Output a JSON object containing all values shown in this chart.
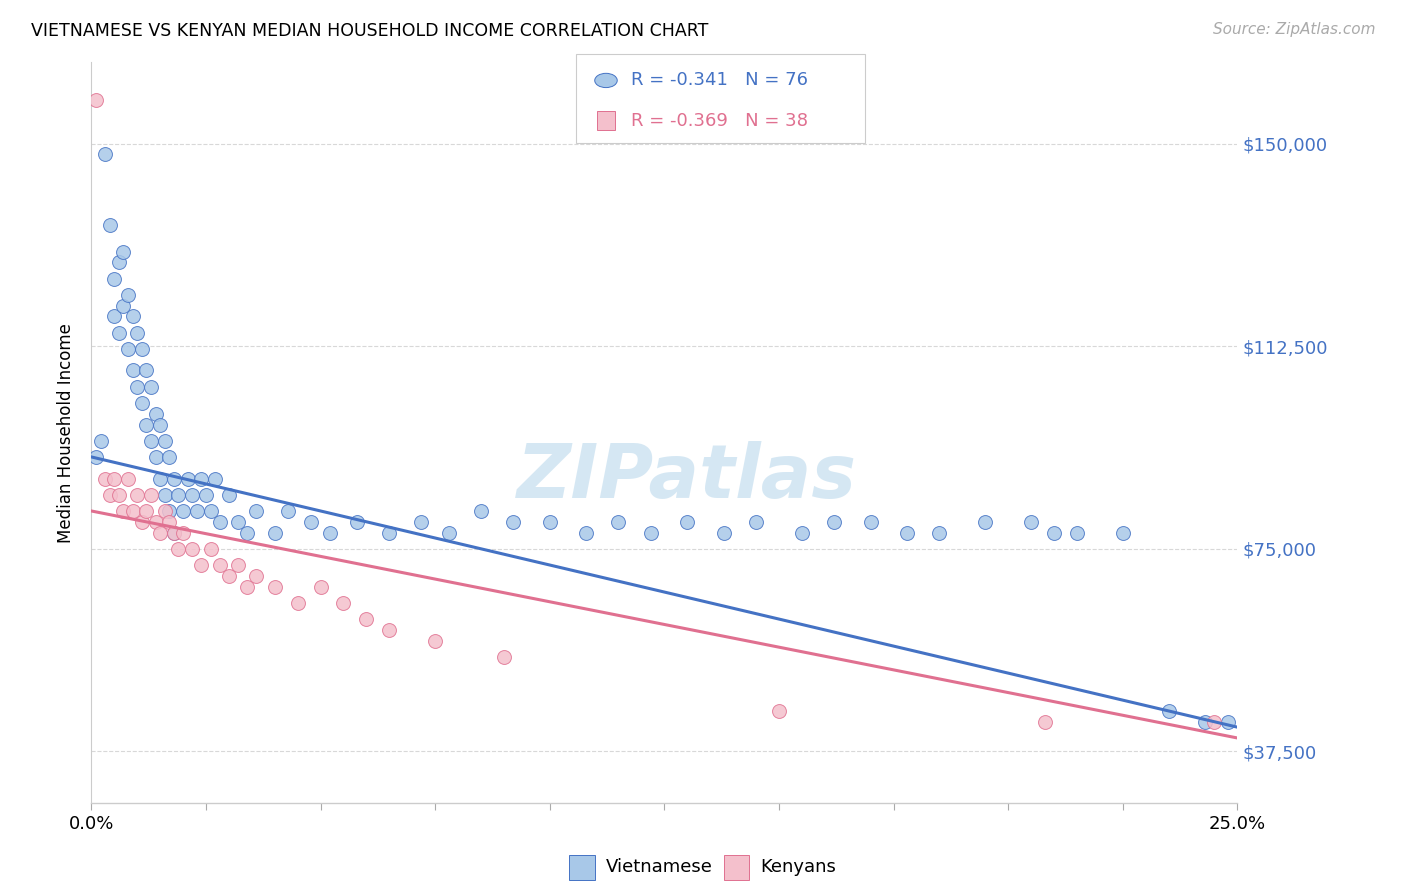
{
  "title": "VIETNAMESE VS KENYAN MEDIAN HOUSEHOLD INCOME CORRELATION CHART",
  "source": "Source: ZipAtlas.com",
  "ylabel": "Median Household Income",
  "yticks": [
    37500,
    75000,
    112500,
    150000
  ],
  "ytick_labels": [
    "$37,500",
    "$75,000",
    "$112,500",
    "$150,000"
  ],
  "xlim": [
    0.0,
    0.25
  ],
  "ylim": [
    28000,
    165000
  ],
  "watermark": "ZIPatlas",
  "legend_vietnamese": "Vietnamese",
  "legend_kenyans": "Kenyans",
  "r_vietnamese": "-0.341",
  "n_vietnamese": "76",
  "r_kenyans": "-0.369",
  "n_kenyans": "38",
  "blue_color": "#a8c8e8",
  "pink_color": "#f4c0cc",
  "line_blue": "#4472c4",
  "line_pink": "#e07090",
  "text_blue": "#4472c4",
  "text_pink": "#e07090",
  "bg_color": "#ffffff",
  "grid_color": "#d8d8d8",
  "vietnamese_x": [
    0.001,
    0.002,
    0.003,
    0.004,
    0.005,
    0.005,
    0.006,
    0.006,
    0.007,
    0.007,
    0.008,
    0.008,
    0.009,
    0.009,
    0.01,
    0.01,
    0.011,
    0.011,
    0.012,
    0.012,
    0.013,
    0.013,
    0.014,
    0.014,
    0.015,
    0.015,
    0.016,
    0.016,
    0.017,
    0.017,
    0.018,
    0.018,
    0.019,
    0.02,
    0.021,
    0.022,
    0.023,
    0.024,
    0.025,
    0.026,
    0.027,
    0.028,
    0.03,
    0.032,
    0.034,
    0.036,
    0.04,
    0.043,
    0.048,
    0.052,
    0.058,
    0.065,
    0.072,
    0.078,
    0.085,
    0.092,
    0.1,
    0.108,
    0.115,
    0.122,
    0.13,
    0.138,
    0.145,
    0.155,
    0.162,
    0.17,
    0.178,
    0.185,
    0.195,
    0.205,
    0.215,
    0.225,
    0.235,
    0.243,
    0.21,
    0.248
  ],
  "vietnamese_y": [
    92000,
    95000,
    148000,
    135000,
    125000,
    118000,
    128000,
    115000,
    130000,
    120000,
    122000,
    112000,
    118000,
    108000,
    115000,
    105000,
    112000,
    102000,
    108000,
    98000,
    105000,
    95000,
    100000,
    92000,
    98000,
    88000,
    95000,
    85000,
    92000,
    82000,
    88000,
    78000,
    85000,
    82000,
    88000,
    85000,
    82000,
    88000,
    85000,
    82000,
    88000,
    80000,
    85000,
    80000,
    78000,
    82000,
    78000,
    82000,
    80000,
    78000,
    80000,
    78000,
    80000,
    78000,
    82000,
    80000,
    80000,
    78000,
    80000,
    78000,
    80000,
    78000,
    80000,
    78000,
    80000,
    80000,
    78000,
    78000,
    80000,
    80000,
    78000,
    78000,
    45000,
    43000,
    78000,
    43000
  ],
  "kenyans_x": [
    0.001,
    0.003,
    0.004,
    0.005,
    0.006,
    0.007,
    0.008,
    0.009,
    0.01,
    0.011,
    0.012,
    0.013,
    0.014,
    0.015,
    0.016,
    0.017,
    0.018,
    0.019,
    0.02,
    0.022,
    0.024,
    0.026,
    0.028,
    0.03,
    0.032,
    0.034,
    0.036,
    0.04,
    0.045,
    0.05,
    0.055,
    0.06,
    0.065,
    0.075,
    0.09,
    0.15,
    0.208,
    0.245
  ],
  "kenyans_y": [
    158000,
    88000,
    85000,
    88000,
    85000,
    82000,
    88000,
    82000,
    85000,
    80000,
    82000,
    85000,
    80000,
    78000,
    82000,
    80000,
    78000,
    75000,
    78000,
    75000,
    72000,
    75000,
    72000,
    70000,
    72000,
    68000,
    70000,
    68000,
    65000,
    68000,
    65000,
    62000,
    60000,
    58000,
    55000,
    45000,
    43000,
    43000
  ]
}
